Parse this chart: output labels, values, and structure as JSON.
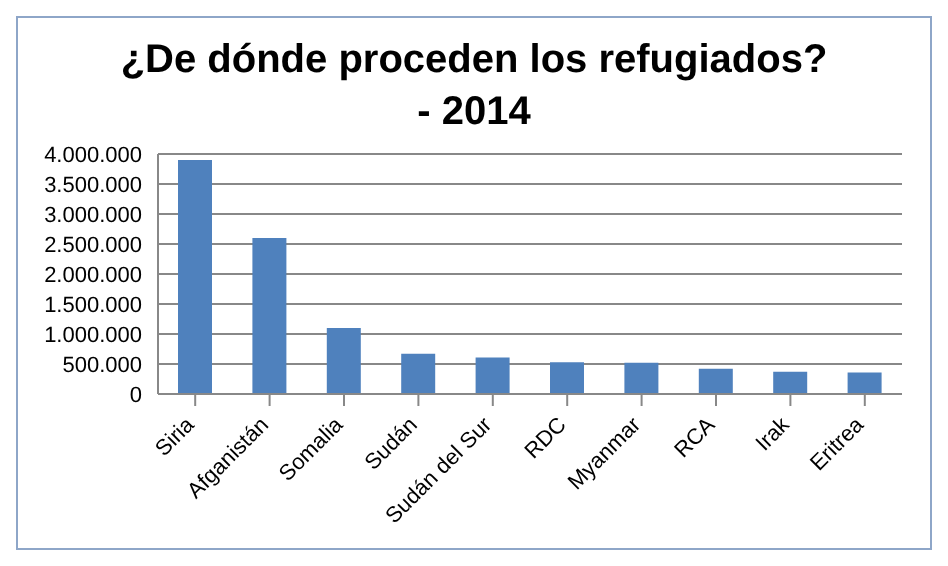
{
  "chart_data": {
    "type": "bar",
    "title": "¿De dónde proceden los refugiados? - 2014",
    "categories": [
      "Siria",
      "Afganistán",
      "Somalia",
      "Sudán",
      "Sudán del Sur",
      "RDC",
      "Myanmar",
      "RCA",
      "Irak",
      "Eritrea"
    ],
    "values": [
      3900000,
      2600000,
      1100000,
      670000,
      610000,
      530000,
      520000,
      420000,
      370000,
      360000
    ],
    "color": "#4f81bd",
    "ylim": [
      0,
      4000000
    ],
    "yticks": [
      {
        "value": 0,
        "label": "0"
      },
      {
        "value": 500000,
        "label": "500.000"
      },
      {
        "value": 1000000,
        "label": "1.000.000"
      },
      {
        "value": 1500000,
        "label": "1.500.000"
      },
      {
        "value": 2000000,
        "label": "2.000.000"
      },
      {
        "value": 2500000,
        "label": "2.500.000"
      },
      {
        "value": 3000000,
        "label": "3.000.000"
      },
      {
        "value": 3500000,
        "label": "3.500.000"
      },
      {
        "value": 4000000,
        "label": "4.000.000"
      }
    ],
    "grid": "y"
  }
}
